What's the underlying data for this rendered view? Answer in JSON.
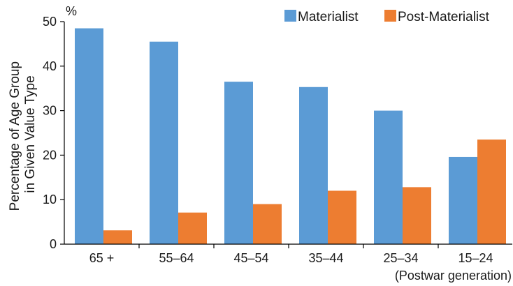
{
  "chart_data": {
    "type": "bar",
    "categories": [
      "65 +",
      "55–64",
      "45–54",
      "35–44",
      "25–34",
      "15–24"
    ],
    "category_note": "(Postwar generation)",
    "series": [
      {
        "name": "Materialist",
        "color": "#5b9bd5",
        "values": [
          48.5,
          45.5,
          36.5,
          35.3,
          30.0,
          19.6
        ]
      },
      {
        "name": "Post-Materialist",
        "color": "#ed7d31",
        "values": [
          3.1,
          7.1,
          9.0,
          12.0,
          12.8,
          23.5
        ]
      }
    ],
    "ylabel_lines": [
      "Percentage of Age Group",
      "in Given Value Type"
    ],
    "y_unit": "%",
    "ylim": [
      0,
      50
    ],
    "yticks": [
      0,
      10,
      20,
      30,
      40,
      50
    ],
    "legend_position": "top-right",
    "grid": false
  }
}
